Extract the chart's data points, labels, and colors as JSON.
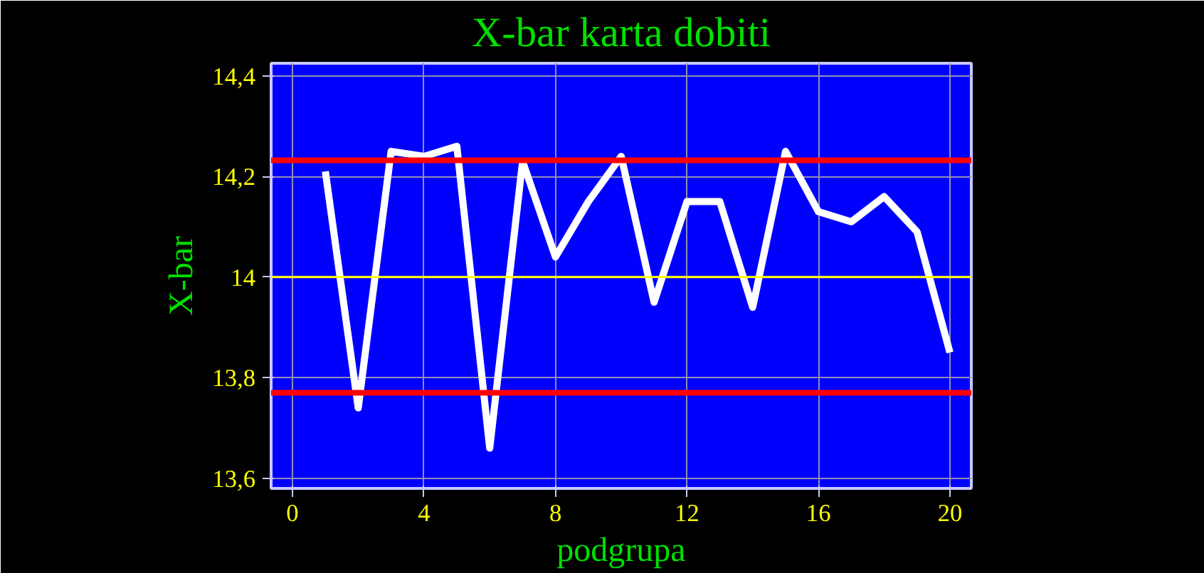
{
  "chart_data": {
    "type": "line",
    "title": "X-bar karta dobiti",
    "xlabel": "podgrupa",
    "ylabel": "X-bar",
    "x": [
      1,
      2,
      3,
      4,
      5,
      6,
      7,
      8,
      9,
      10,
      11,
      12,
      13,
      14,
      15,
      16,
      17,
      18,
      19,
      20
    ],
    "series": [
      {
        "color": "#ffffff",
        "values": [
          14.21,
          13.74,
          14.25,
          14.24,
          14.26,
          13.66,
          14.23,
          14.04,
          14.15,
          14.24,
          13.95,
          14.15,
          14.15,
          13.94,
          14.25,
          14.13,
          14.11,
          14.16,
          14.09,
          13.85
        ]
      }
    ],
    "xlim": [
      -0.65,
      20.65
    ],
    "xticks": [
      0,
      4,
      8,
      12,
      16,
      20
    ],
    "ylim": [
      13.58,
      14.425
    ],
    "yticks": [
      {
        "value": 13.6,
        "label": "13,6"
      },
      {
        "value": 13.8,
        "label": "13,8"
      },
      {
        "value": 14,
        "label": "14"
      },
      {
        "value": 14.2,
        "label": "14,2"
      },
      {
        "value": 14.4,
        "label": "14,4"
      }
    ],
    "ref_lines": [
      {
        "axis": "y",
        "value": 14.232,
        "color": "#ff0000"
      },
      {
        "axis": "y",
        "value": 13.77,
        "color": "#ff0000"
      },
      {
        "axis": "y",
        "value": 14.0,
        "color": "#ffff00"
      }
    ],
    "grid": true,
    "line_style": "solid"
  }
}
